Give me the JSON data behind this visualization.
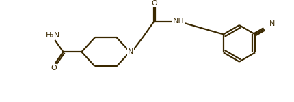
{
  "bg_color": "#ffffff",
  "line_color": "#3a2800",
  "text_color": "#3a2800",
  "lw": 1.6,
  "fs": 8.0,
  "figsize": [
    4.3,
    1.5
  ],
  "dpi": 100,
  "xlim": [
    0,
    430
  ],
  "ylim": [
    0,
    150
  ]
}
